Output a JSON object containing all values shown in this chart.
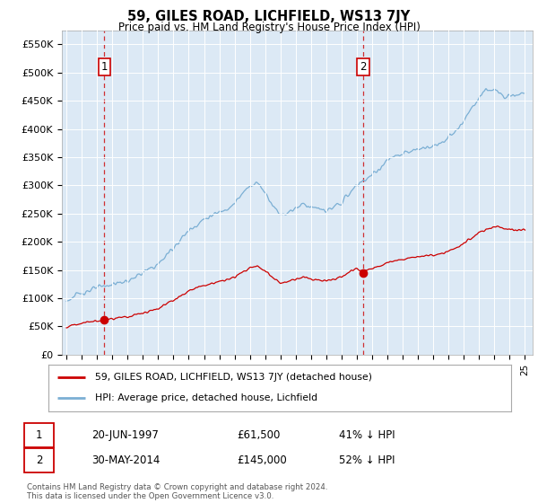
{
  "title": "59, GILES ROAD, LICHFIELD, WS13 7JY",
  "subtitle": "Price paid vs. HM Land Registry's House Price Index (HPI)",
  "ylim": [
    0,
    575000
  ],
  "yticks": [
    0,
    50000,
    100000,
    150000,
    200000,
    250000,
    300000,
    350000,
    400000,
    450000,
    500000,
    550000
  ],
  "ytick_labels": [
    "£0",
    "£50K",
    "£100K",
    "£150K",
    "£200K",
    "£250K",
    "£300K",
    "£350K",
    "£400K",
    "£450K",
    "£500K",
    "£550K"
  ],
  "hpi_color": "#7bafd4",
  "price_color": "#cc0000",
  "sale1_date": 1997.47,
  "sale1_price": 61500,
  "sale1_label": "1",
  "sale2_date": 2014.41,
  "sale2_price": 145000,
  "sale2_label": "2",
  "legend_line1": "59, GILES ROAD, LICHFIELD, WS13 7JY (detached house)",
  "legend_line2": "HPI: Average price, detached house, Lichfield",
  "table_row1_num": "1",
  "table_row1_date": "20-JUN-1997",
  "table_row1_price": "£61,500",
  "table_row1_hpi": "41% ↓ HPI",
  "table_row2_num": "2",
  "table_row2_date": "30-MAY-2014",
  "table_row2_price": "£145,000",
  "table_row2_hpi": "52% ↓ HPI",
  "footer": "Contains HM Land Registry data © Crown copyright and database right 2024.\nThis data is licensed under the Open Government Licence v3.0.",
  "plot_bg_color": "#dce9f5",
  "grid_color": "#ffffff"
}
